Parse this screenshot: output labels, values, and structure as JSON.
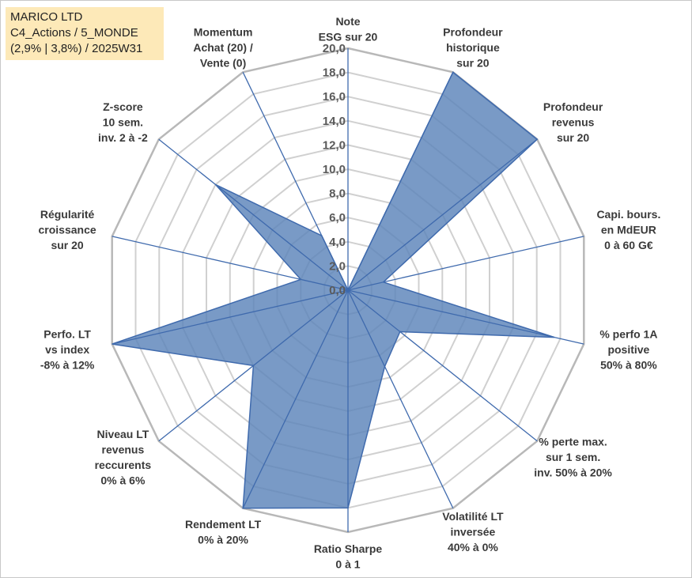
{
  "header": {
    "line1": "MARICO LTD",
    "line2": "C4_Actions / 5_MONDE",
    "line3": "(2,9% | 3,8%) / 2025W31"
  },
  "chart_data": {
    "type": "radar",
    "rmin": 0,
    "rmax": 20,
    "tick_step": 2,
    "ticks": [
      "0,0",
      "2,0",
      "4,0",
      "6,0",
      "8,0",
      "10,0",
      "12,0",
      "14,0",
      "16,0",
      "18,0",
      "20,0"
    ],
    "fill_color": "#5b84b9",
    "line_color": "#3f6aad",
    "grid_color": "#d0d0d0",
    "outer_grid_color": "#b8b8b8",
    "axes": [
      {
        "label": [
          "Note",
          "ESG sur 20"
        ],
        "value": 0
      },
      {
        "label": [
          "Profondeur",
          "historique",
          "sur 20"
        ],
        "value": 20
      },
      {
        "label": [
          "Profondeur",
          "revenus",
          "sur 20"
        ],
        "value": 20
      },
      {
        "label": [
          "Capi. bours.",
          "en MdEUR",
          "0 à 60 G€"
        ],
        "value": 3
      },
      {
        "label": [
          "% perfo 1A",
          "positive",
          "50% à 80%"
        ],
        "value": 17.5
      },
      {
        "label": [
          "% perte max.",
          "sur 1 sem.",
          "inv. 50% à 20%"
        ],
        "value": 5.5
      },
      {
        "label": [
          "Volatilité LT",
          "inversée",
          "40% à 0%"
        ],
        "value": 7
      },
      {
        "label": [
          "Ratio Sharpe",
          "0 à 1"
        ],
        "value": 18
      },
      {
        "label": [
          "Rendement LT",
          "0% à 20%"
        ],
        "value": 20
      },
      {
        "label": [
          "Niveau LT",
          "revenus",
          "reccurents",
          "0% à 6%"
        ],
        "value": 10
      },
      {
        "label": [
          "Perfo. LT",
          "vs index",
          "-8% à 12%"
        ],
        "value": 20
      },
      {
        "label": [
          "Régularité",
          "croissance",
          "sur 20"
        ],
        "value": 4
      },
      {
        "label": [
          "Z-score",
          "10 sem.",
          "inv. 2 à -2"
        ],
        "value": 14
      },
      {
        "label": [
          "Momentum",
          "Achat (20) /",
          "Vente (0)"
        ],
        "value": 5
      }
    ]
  }
}
